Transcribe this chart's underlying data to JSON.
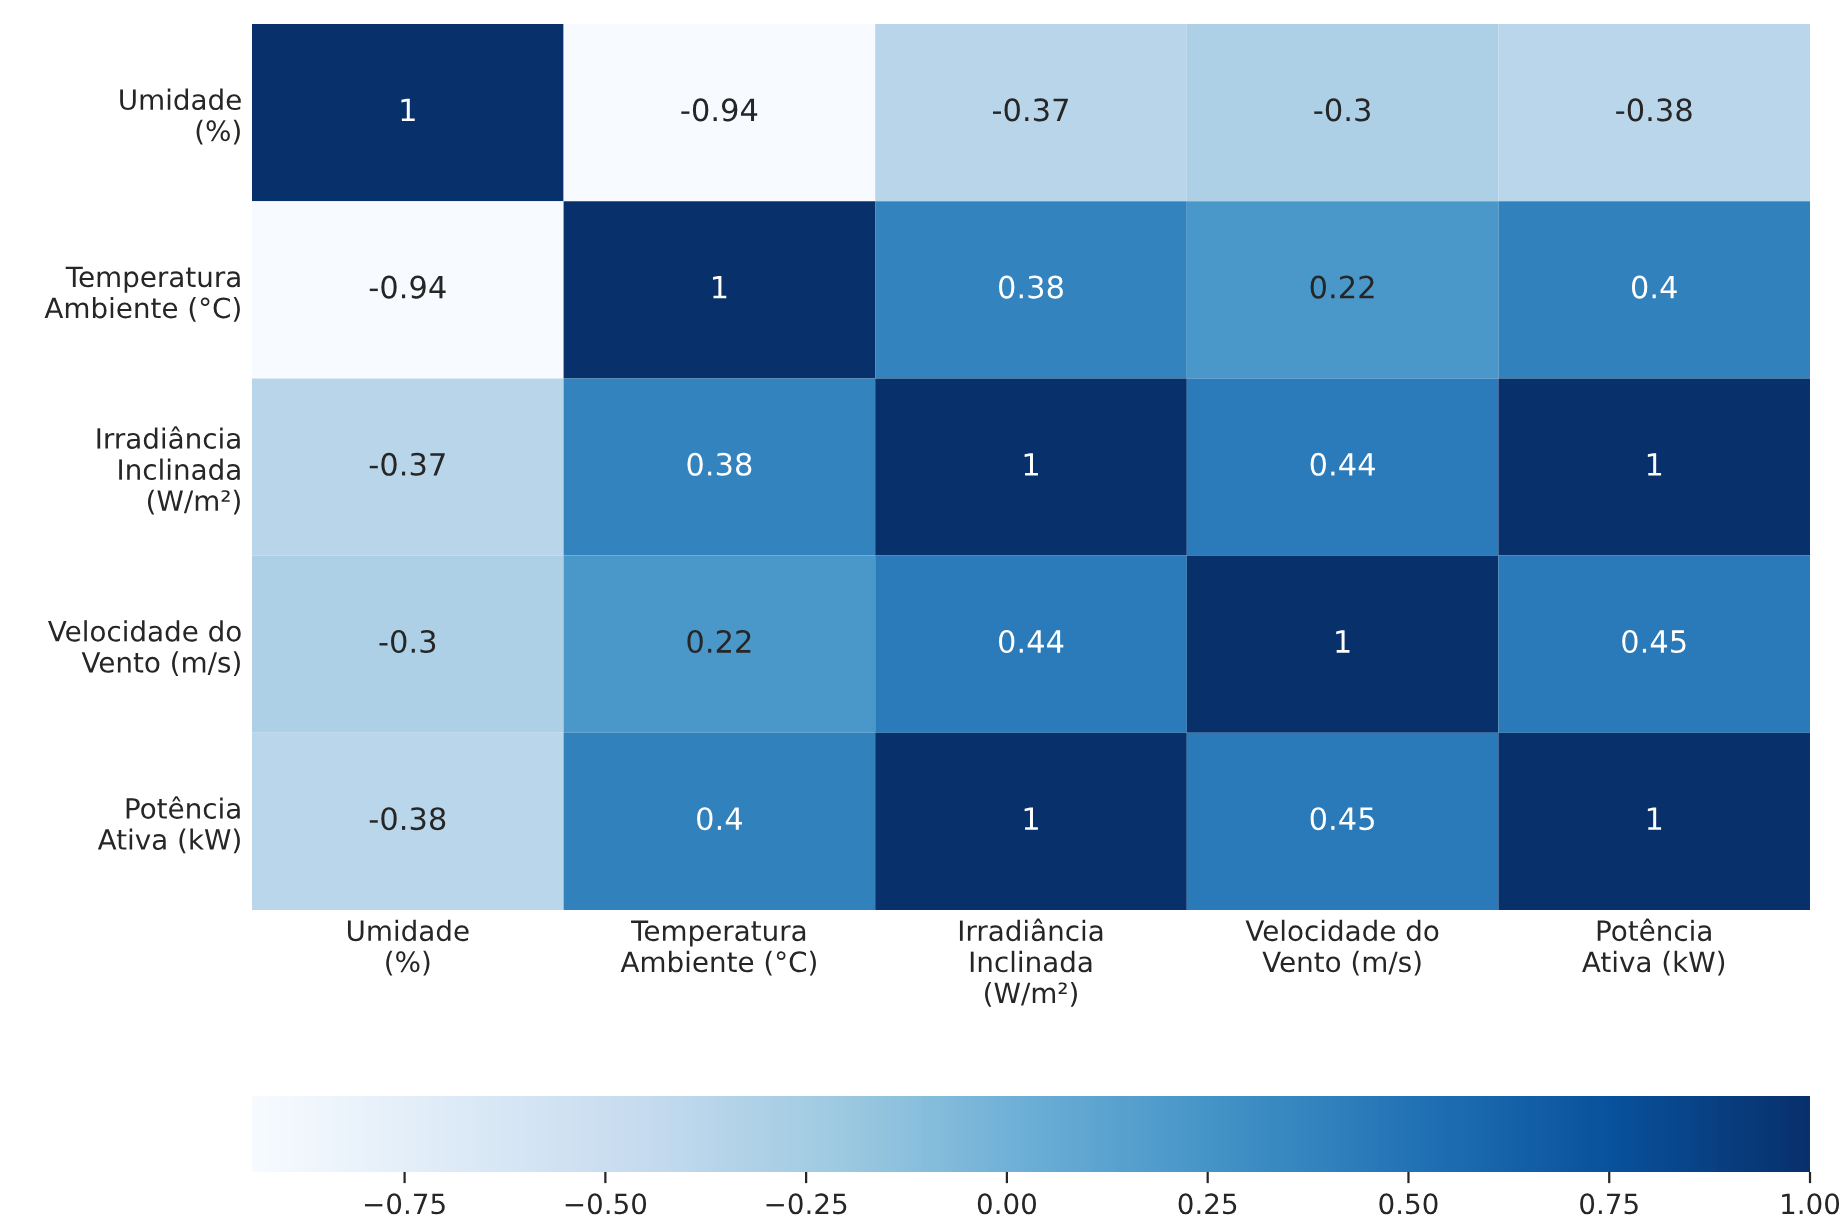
{
  "chart_data": {
    "type": "heatmap",
    "categories": [
      "Umidade\n(%)",
      "Temperatura\nAmbiente (°C)",
      "Irradiância\nInclinada\n(W/m²)",
      "Velocidade do\nVento (m/s)",
      "Potência\nAtiva (kW)"
    ],
    "y_categories": [
      "Umidade\n(%)",
      "Temperatura\nAmbiente (°C)",
      "Irradiância\nInclinada\n(W/m²)",
      "Velocidade do\nVento (m/s)",
      "Potência\nAtiva (kW)"
    ],
    "cells": [
      [
        1,
        -0.94,
        -0.37,
        -0.3,
        -0.38
      ],
      [
        -0.94,
        1,
        0.38,
        0.22,
        0.4
      ],
      [
        -0.37,
        0.38,
        1,
        0.44,
        1
      ],
      [
        -0.3,
        0.22,
        0.44,
        1,
        0.45
      ],
      [
        -0.38,
        0.4,
        1,
        0.45,
        1
      ]
    ],
    "data_labels": true,
    "clim": [
      -0.94,
      1
    ],
    "cticks": [
      {
        "value": -0.75,
        "label": "−0.75"
      },
      {
        "value": -0.5,
        "label": "−0.50"
      },
      {
        "value": -0.25,
        "label": "−0.25"
      },
      {
        "value": 0,
        "label": "0.00"
      },
      {
        "value": 0.25,
        "label": "0.25"
      },
      {
        "value": 0.5,
        "label": "0.50"
      },
      {
        "value": 0.75,
        "label": "0.75"
      },
      {
        "value": 1,
        "label": "1.00"
      }
    ]
  }
}
